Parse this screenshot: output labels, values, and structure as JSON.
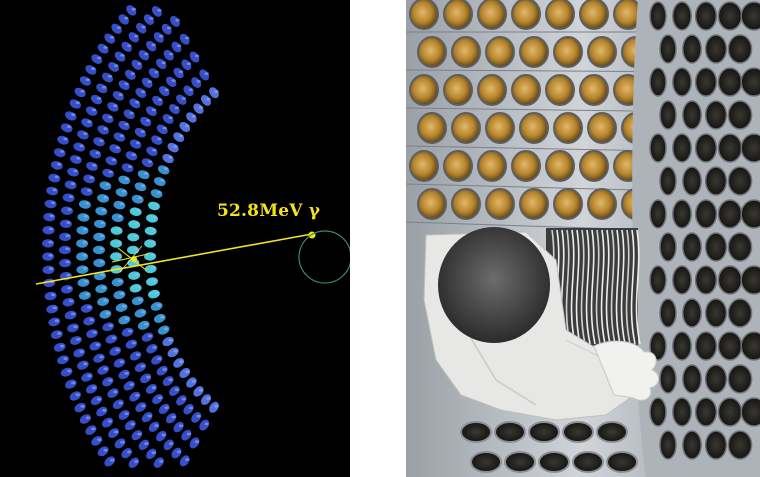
{
  "left_image": {
    "description_label": "52.8MeV γ",
    "colors": {
      "background": "#000000",
      "crystal_blue": "#3f5fe0",
      "crystal_cyan": "#47d6e6",
      "track_yellow": "#f2e41b",
      "circle_green": "#3d8a6e"
    },
    "icon": "event-display-photon-shower"
  },
  "right_image": {
    "icon": "detector-pmt-array-photo",
    "colors": {
      "steel": "#b7bcc2",
      "pmt_gold": "#b5852e",
      "pmt_dark": "#1b1a16",
      "coat": "#e7e7e5",
      "glove": "#f1f1ef"
    }
  }
}
